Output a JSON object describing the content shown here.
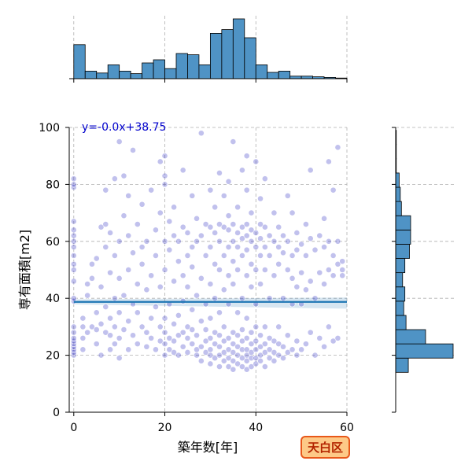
{
  "chart_data": {
    "type": "scatter",
    "title": "",
    "xlabel": "築年数[年]",
    "ylabel": "専有面積[m2]",
    "xlim": [
      -1,
      60
    ],
    "ylim": [
      0,
      100
    ],
    "xticks": [
      "0",
      "20",
      "40",
      "60"
    ],
    "yticks": [
      "0",
      "20",
      "40",
      "60",
      "80",
      "100"
    ],
    "grid": true,
    "regression": {
      "equation": "y=-0.0x+38.75",
      "slope": 0.0,
      "intercept": 38.75,
      "x_range": [
        0,
        60
      ],
      "ci_band": 1.5
    },
    "badge": "天白区",
    "colors": {
      "points": "#1f1fbf",
      "regression": "#1f77b4",
      "histogram": "#4f93c5",
      "badge_fill": "#fdc987",
      "badge_border": "#e8581a"
    },
    "x_histogram": {
      "bin_edges": [
        0,
        2.5,
        5,
        7.5,
        10,
        12.5,
        15,
        17.5,
        20,
        22.5,
        25,
        27.5,
        30,
        32.5,
        35,
        37.5,
        40,
        42.5,
        45,
        47.5,
        50,
        52.5,
        55,
        57.5,
        60
      ],
      "counts": [
        54,
        12,
        9,
        22,
        12,
        8,
        25,
        30,
        16,
        40,
        38,
        22,
        72,
        78,
        95,
        65,
        22,
        10,
        12,
        4,
        4,
        3,
        2,
        1
      ]
    },
    "y_histogram": {
      "bin_edges": [
        14,
        19,
        24,
        29,
        34,
        39,
        44,
        49,
        54,
        59,
        64,
        69,
        74,
        79,
        84,
        89,
        94,
        99
      ],
      "counts": [
        22,
        100,
        52,
        18,
        14,
        16,
        12,
        16,
        24,
        26,
        26,
        10,
        8,
        6,
        1,
        1,
        1
      ]
    },
    "scatter_points": [
      [
        0,
        20
      ],
      [
        0,
        21
      ],
      [
        0,
        22
      ],
      [
        0,
        23
      ],
      [
        0,
        24
      ],
      [
        0,
        25
      ],
      [
        0,
        26
      ],
      [
        0,
        28
      ],
      [
        0,
        30
      ],
      [
        0,
        39
      ],
      [
        0,
        40
      ],
      [
        0,
        46
      ],
      [
        0,
        50
      ],
      [
        0,
        52
      ],
      [
        0,
        55
      ],
      [
        0,
        58
      ],
      [
        0,
        60
      ],
      [
        0,
        62
      ],
      [
        0,
        64
      ],
      [
        0,
        67
      ],
      [
        0,
        79
      ],
      [
        0,
        80
      ],
      [
        0,
        82
      ],
      [
        2,
        22
      ],
      [
        2,
        26
      ],
      [
        2,
        30
      ],
      [
        2,
        33
      ],
      [
        3,
        28
      ],
      [
        3,
        41
      ],
      [
        3,
        45
      ],
      [
        4,
        30
      ],
      [
        4,
        47
      ],
      [
        4,
        52
      ],
      [
        5,
        24
      ],
      [
        5,
        29
      ],
      [
        5,
        35
      ],
      [
        5,
        54
      ],
      [
        6,
        20
      ],
      [
        6,
        31
      ],
      [
        6,
        44
      ],
      [
        6,
        65
      ],
      [
        7,
        28
      ],
      [
        7,
        37
      ],
      [
        7,
        58
      ],
      [
        7,
        66
      ],
      [
        7,
        78
      ],
      [
        8,
        22
      ],
      [
        8,
        27
      ],
      [
        8,
        33
      ],
      [
        8,
        49
      ],
      [
        8,
        63
      ],
      [
        9,
        24
      ],
      [
        9,
        30
      ],
      [
        9,
        40
      ],
      [
        9,
        55
      ],
      [
        9,
        82
      ],
      [
        10,
        19
      ],
      [
        10,
        26
      ],
      [
        10,
        35
      ],
      [
        10,
        47
      ],
      [
        10,
        60
      ],
      [
        10,
        95
      ],
      [
        11,
        29
      ],
      [
        11,
        41
      ],
      [
        11,
        69
      ],
      [
        11,
        83
      ],
      [
        12,
        22
      ],
      [
        12,
        32
      ],
      [
        12,
        50
      ],
      [
        12,
        62
      ],
      [
        12,
        76
      ],
      [
        13,
        27
      ],
      [
        13,
        38
      ],
      [
        13,
        56
      ],
      [
        13,
        92
      ],
      [
        14,
        24
      ],
      [
        14,
        35
      ],
      [
        14,
        45
      ],
      [
        14,
        66
      ],
      [
        15,
        30
      ],
      [
        15,
        52
      ],
      [
        15,
        58
      ],
      [
        15,
        73
      ],
      [
        16,
        23
      ],
      [
        16,
        28
      ],
      [
        16,
        43
      ],
      [
        16,
        60
      ],
      [
        17,
        26
      ],
      [
        17,
        33
      ],
      [
        17,
        48
      ],
      [
        17,
        78
      ],
      [
        18,
        22
      ],
      [
        18,
        37
      ],
      [
        18,
        55
      ],
      [
        18,
        64
      ],
      [
        19,
        25
      ],
      [
        19,
        30
      ],
      [
        19,
        44
      ],
      [
        19,
        70
      ],
      [
        19,
        88
      ],
      [
        20,
        20
      ],
      [
        20,
        24
      ],
      [
        20,
        28
      ],
      [
        20,
        33
      ],
      [
        20,
        50
      ],
      [
        20,
        60
      ],
      [
        20,
        80
      ],
      [
        20,
        83
      ],
      [
        20,
        90
      ],
      [
        21,
        22
      ],
      [
        21,
        26
      ],
      [
        21,
        38
      ],
      [
        21,
        57
      ],
      [
        21,
        67
      ],
      [
        22,
        21
      ],
      [
        22,
        25
      ],
      [
        22,
        31
      ],
      [
        22,
        46
      ],
      [
        22,
        62
      ],
      [
        22,
        72
      ],
      [
        23,
        20
      ],
      [
        23,
        27
      ],
      [
        23,
        34
      ],
      [
        23,
        53
      ],
      [
        23,
        60
      ],
      [
        24,
        23
      ],
      [
        24,
        28
      ],
      [
        24,
        39
      ],
      [
        24,
        48
      ],
      [
        24,
        65
      ],
      [
        24,
        85
      ],
      [
        25,
        21
      ],
      [
        25,
        26
      ],
      [
        25,
        30
      ],
      [
        25,
        44
      ],
      [
        25,
        55
      ],
      [
        25,
        63
      ],
      [
        26,
        24
      ],
      [
        26,
        29
      ],
      [
        26,
        36
      ],
      [
        26,
        51
      ],
      [
        26,
        58
      ],
      [
        26,
        76
      ],
      [
        27,
        20
      ],
      [
        27,
        22
      ],
      [
        27,
        27
      ],
      [
        27,
        41
      ],
      [
        27,
        60
      ],
      [
        27,
        68
      ],
      [
        28,
        18
      ],
      [
        28,
        23
      ],
      [
        28,
        32
      ],
      [
        28,
        47
      ],
      [
        28,
        62
      ],
      [
        28,
        98
      ],
      [
        29,
        21
      ],
      [
        29,
        25
      ],
      [
        29,
        29
      ],
      [
        29,
        38
      ],
      [
        29,
        55
      ],
      [
        29,
        66
      ],
      [
        30,
        17
      ],
      [
        30,
        20
      ],
      [
        30,
        22
      ],
      [
        30,
        26
      ],
      [
        30,
        33
      ],
      [
        30,
        45
      ],
      [
        30,
        58
      ],
      [
        30,
        65
      ],
      [
        30,
        78
      ],
      [
        31,
        19
      ],
      [
        31,
        24
      ],
      [
        31,
        28
      ],
      [
        31,
        40
      ],
      [
        31,
        52
      ],
      [
        31,
        63
      ],
      [
        31,
        72
      ],
      [
        32,
        16
      ],
      [
        32,
        20
      ],
      [
        32,
        23
      ],
      [
        32,
        27
      ],
      [
        32,
        35
      ],
      [
        32,
        50
      ],
      [
        32,
        60
      ],
      [
        32,
        66
      ],
      [
        32,
        84
      ],
      [
        33,
        18
      ],
      [
        33,
        21
      ],
      [
        33,
        25
      ],
      [
        33,
        30
      ],
      [
        33,
        43
      ],
      [
        33,
        55
      ],
      [
        33,
        65
      ],
      [
        33,
        76
      ],
      [
        34,
        16
      ],
      [
        34,
        19
      ],
      [
        34,
        22
      ],
      [
        34,
        26
      ],
      [
        34,
        38
      ],
      [
        34,
        48
      ],
      [
        34,
        58
      ],
      [
        34,
        64
      ],
      [
        34,
        69
      ],
      [
        34,
        81
      ],
      [
        35,
        15
      ],
      [
        35,
        18
      ],
      [
        35,
        21
      ],
      [
        35,
        24
      ],
      [
        35,
        28
      ],
      [
        35,
        45
      ],
      [
        35,
        53
      ],
      [
        35,
        60
      ],
      [
        35,
        66
      ],
      [
        35,
        95
      ],
      [
        36,
        17
      ],
      [
        36,
        20
      ],
      [
        36,
        23
      ],
      [
        36,
        27
      ],
      [
        36,
        35
      ],
      [
        36,
        50
      ],
      [
        36,
        58
      ],
      [
        36,
        63
      ],
      [
        36,
        72
      ],
      [
        37,
        16
      ],
      [
        37,
        19
      ],
      [
        37,
        22
      ],
      [
        37,
        25
      ],
      [
        37,
        29
      ],
      [
        37,
        40
      ],
      [
        37,
        55
      ],
      [
        37,
        61
      ],
      [
        37,
        65
      ],
      [
        37,
        85
      ],
      [
        38,
        15
      ],
      [
        38,
        18
      ],
      [
        38,
        20
      ],
      [
        38,
        22
      ],
      [
        38,
        26
      ],
      [
        38,
        33
      ],
      [
        38,
        48
      ],
      [
        38,
        57
      ],
      [
        38,
        62
      ],
      [
        38,
        66
      ],
      [
        38,
        78
      ],
      [
        38,
        90
      ],
      [
        39,
        16
      ],
      [
        39,
        19
      ],
      [
        39,
        21
      ],
      [
        39,
        24
      ],
      [
        39,
        28
      ],
      [
        39,
        44
      ],
      [
        39,
        52
      ],
      [
        39,
        60
      ],
      [
        39,
        64
      ],
      [
        39,
        70
      ],
      [
        40,
        17
      ],
      [
        40,
        19
      ],
      [
        40,
        22
      ],
      [
        40,
        25
      ],
      [
        40,
        30
      ],
      [
        40,
        38
      ],
      [
        40,
        50
      ],
      [
        40,
        58
      ],
      [
        40,
        63
      ],
      [
        40,
        88
      ],
      [
        41,
        18
      ],
      [
        41,
        20
      ],
      [
        41,
        23
      ],
      [
        41,
        27
      ],
      [
        41,
        45
      ],
      [
        41,
        55
      ],
      [
        41,
        61
      ],
      [
        41,
        66
      ],
      [
        41,
        75
      ],
      [
        42,
        16
      ],
      [
        42,
        21
      ],
      [
        42,
        24
      ],
      [
        42,
        30
      ],
      [
        42,
        50
      ],
      [
        42,
        58
      ],
      [
        42,
        65
      ],
      [
        42,
        82
      ],
      [
        43,
        19
      ],
      [
        43,
        22
      ],
      [
        43,
        26
      ],
      [
        43,
        40
      ],
      [
        43,
        55
      ],
      [
        43,
        62
      ],
      [
        44,
        18
      ],
      [
        44,
        21
      ],
      [
        44,
        25
      ],
      [
        44,
        48
      ],
      [
        44,
        60
      ],
      [
        44,
        70
      ],
      [
        45,
        20
      ],
      [
        45,
        24
      ],
      [
        45,
        30
      ],
      [
        45,
        52
      ],
      [
        45,
        58
      ],
      [
        45,
        65
      ],
      [
        46,
        19
      ],
      [
        46,
        23
      ],
      [
        46,
        40
      ],
      [
        46,
        56
      ],
      [
        46,
        62
      ],
      [
        47,
        21
      ],
      [
        47,
        27
      ],
      [
        47,
        50
      ],
      [
        47,
        60
      ],
      [
        47,
        76
      ],
      [
        48,
        22
      ],
      [
        48,
        38
      ],
      [
        48,
        47
      ],
      [
        48,
        55
      ],
      [
        48,
        70
      ],
      [
        49,
        20
      ],
      [
        49,
        25
      ],
      [
        49,
        44
      ],
      [
        49,
        57
      ],
      [
        49,
        63
      ],
      [
        50,
        22
      ],
      [
        50,
        38
      ],
      [
        50,
        49
      ],
      [
        50,
        59
      ],
      [
        51,
        24
      ],
      [
        51,
        43
      ],
      [
        51,
        55
      ],
      [
        51,
        66
      ],
      [
        52,
        28
      ],
      [
        52,
        46
      ],
      [
        52,
        61
      ],
      [
        52,
        85
      ],
      [
        53,
        20
      ],
      [
        53,
        40
      ],
      [
        53,
        57
      ],
      [
        54,
        26
      ],
      [
        54,
        49
      ],
      [
        54,
        62
      ],
      [
        55,
        23
      ],
      [
        55,
        45
      ],
      [
        55,
        58
      ],
      [
        55,
        68
      ],
      [
        56,
        30
      ],
      [
        56,
        50
      ],
      [
        56,
        60
      ],
      [
        56,
        88
      ],
      [
        57,
        25
      ],
      [
        57,
        48
      ],
      [
        57,
        55
      ],
      [
        57,
        78
      ],
      [
        58,
        26
      ],
      [
        58,
        52
      ],
      [
        58,
        60
      ],
      [
        58,
        93
      ],
      [
        59,
        48
      ],
      [
        59,
        50
      ],
      [
        59,
        53
      ]
    ]
  }
}
